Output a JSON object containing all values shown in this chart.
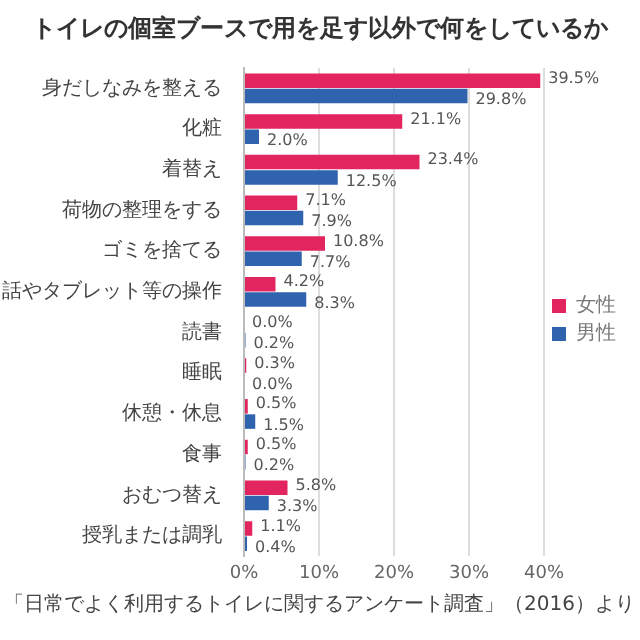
{
  "chart_data": {
    "type": "bar",
    "orientation": "horizontal",
    "title": "トイレの個室ブースで用を足す以外で何をしているか",
    "categories": [
      "身だしなみを整える",
      "化粧",
      "着替え",
      "荷物の整理をする",
      "ゴミを捨てる",
      "話やタブレット等の操作",
      "読書",
      "睡眠",
      "休憩・休息",
      "食事",
      "おむつ替え",
      "授乳または調乳"
    ],
    "series": [
      {
        "name": "女性",
        "color": "#e2245f",
        "values": [
          39.5,
          21.1,
          23.4,
          7.1,
          10.8,
          4.2,
          0.0,
          0.3,
          0.5,
          0.5,
          5.8,
          1.1
        ],
        "value_labels": [
          "39.5%",
          "21.1%",
          "23.4%",
          "7.1%",
          "10.8%",
          "4.2%",
          "0.0%",
          "0.3%",
          "0.5%",
          "0.5%",
          "5.8%",
          "1.1%"
        ]
      },
      {
        "name": "男性",
        "color": "#2f63ae",
        "values": [
          29.8,
          2.0,
          12.5,
          7.9,
          7.7,
          8.3,
          0.2,
          0.0,
          1.5,
          0.2,
          3.3,
          0.4
        ],
        "value_labels": [
          "29.8%",
          "2.0%",
          "12.5%",
          "7.9%",
          "7.7%",
          "8.3%",
          "0.2%",
          "0.0%",
          "1.5%",
          "0.2%",
          "3.3%",
          "0.4%"
        ]
      }
    ],
    "xlim": [
      0,
      40
    ],
    "xticks": [
      {
        "value": 0,
        "label": "0%"
      },
      {
        "value": 10,
        "label": "10%"
      },
      {
        "value": 20,
        "label": "20%"
      },
      {
        "value": 30,
        "label": "30%"
      },
      {
        "value": 40,
        "label": "40%"
      }
    ],
    "grid": "x",
    "legend": "bottom right",
    "annotations": [
      "「日常でよく利用するトイレに関するアンケート調査」（2016）より"
    ]
  }
}
